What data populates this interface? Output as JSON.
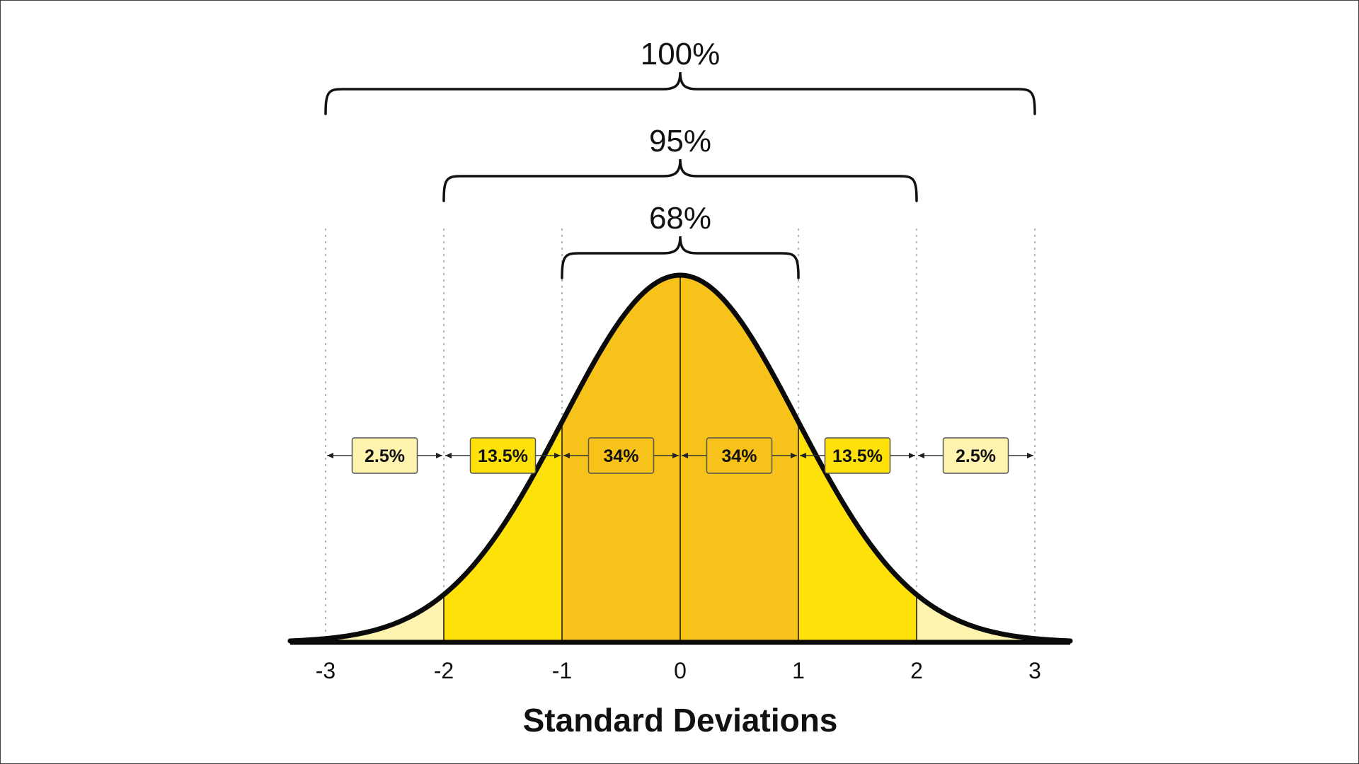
{
  "chart_data": {
    "type": "area",
    "distribution": "normal",
    "xlabel": "Standard Deviations",
    "x_ticks": [
      -3,
      -2,
      -1,
      0,
      1,
      2,
      3
    ],
    "x_tick_labels": [
      "-3",
      "-2",
      "-1",
      "0",
      "1",
      "2",
      "3"
    ],
    "xlim": [
      -3.3,
      3.3
    ],
    "grid": "dotted vertical lines at each standard deviation",
    "segments": [
      {
        "from": -3,
        "to": -2,
        "label": "2.5%",
        "value": 2.5,
        "color": "#FFF3B0"
      },
      {
        "from": -2,
        "to": -1,
        "label": "13.5%",
        "value": 13.5,
        "color": "#FFE10A"
      },
      {
        "from": -1,
        "to": 0,
        "label": "34%",
        "value": 34,
        "color": "#F7C21A"
      },
      {
        "from": 0,
        "to": 1,
        "label": "34%",
        "value": 34,
        "color": "#F7C21A"
      },
      {
        "from": 1,
        "to": 2,
        "label": "13.5%",
        "value": 13.5,
        "color": "#FFE10A"
      },
      {
        "from": 2,
        "to": 3,
        "label": "2.5%",
        "value": 2.5,
        "color": "#FFF3B0"
      }
    ],
    "brackets": [
      {
        "from": -3,
        "to": 3,
        "label": "100%",
        "value": 100
      },
      {
        "from": -2,
        "to": 2,
        "label": "95%",
        "value": 95
      },
      {
        "from": -1,
        "to": 1,
        "label": "68%",
        "value": 68
      }
    ]
  }
}
